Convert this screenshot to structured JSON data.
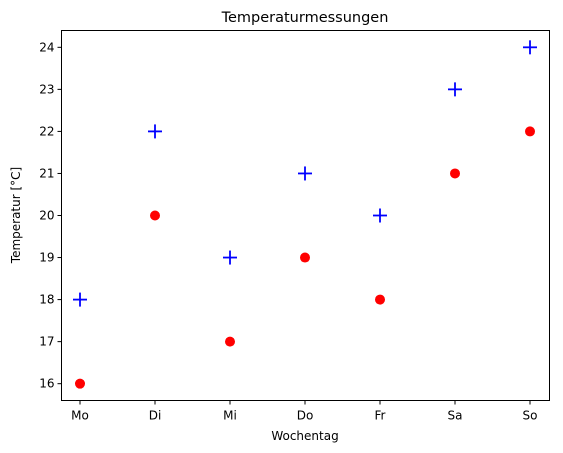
{
  "chart_data": {
    "type": "scatter",
    "title": "Temperaturmessungen",
    "xlabel": "Wochentag",
    "ylabel": "Temperatur [°C]",
    "categories": [
      "Mo",
      "Di",
      "Mi",
      "Do",
      "Fr",
      "Sa",
      "So"
    ],
    "ylim": [
      15.6,
      24.4
    ],
    "yticks": [
      16,
      17,
      18,
      19,
      20,
      21,
      22,
      23,
      24
    ],
    "grid": false,
    "legend": "none",
    "series": [
      {
        "marker": "plus",
        "color": "#0000ff",
        "values": [
          18,
          22,
          19,
          21,
          20,
          23,
          24
        ]
      },
      {
        "marker": "circle",
        "color": "#ff0000",
        "values": [
          16,
          20,
          17,
          19,
          18,
          21,
          22
        ]
      }
    ]
  }
}
